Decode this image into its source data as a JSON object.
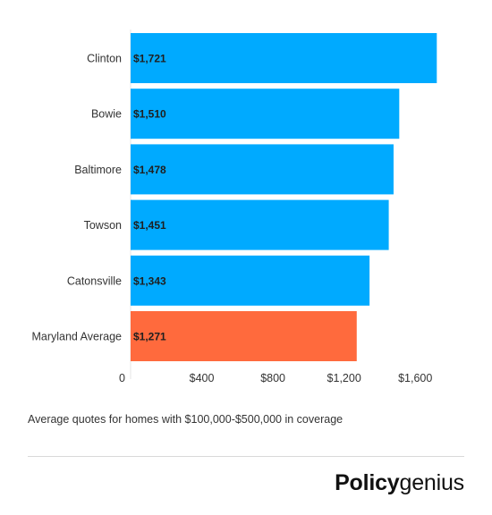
{
  "chart_data": {
    "type": "bar",
    "orientation": "horizontal",
    "categories": [
      "Clinton",
      "Bowie",
      "Baltimore",
      "Towson",
      "Catonsville",
      "Maryland Average"
    ],
    "values": [
      1721,
      1510,
      1478,
      1451,
      1343,
      1271
    ],
    "data_labels": [
      "$1,721",
      "$1,510",
      "$1,478",
      "$1,451",
      "$1,343",
      "$1,271"
    ],
    "bar_colors": [
      "#00aaff",
      "#00aaff",
      "#00aaff",
      "#00aaff",
      "#00aaff",
      "#ff6a3d"
    ],
    "x_ticks": [
      {
        "value": 0,
        "label": "0"
      },
      {
        "value": 400,
        "label": "$400"
      },
      {
        "value": 800,
        "label": "$800"
      },
      {
        "value": 1200,
        "label": "$1,200"
      },
      {
        "value": 1600,
        "label": "$1,600"
      }
    ],
    "xlim": [
      0,
      1800
    ],
    "title": "",
    "xlabel": "",
    "ylabel": "",
    "grid": false,
    "legend": "none"
  },
  "caption": "Average quotes for homes with $100,000-$500,000 in coverage",
  "brand": {
    "part1": "Policy",
    "part2": "genius"
  }
}
